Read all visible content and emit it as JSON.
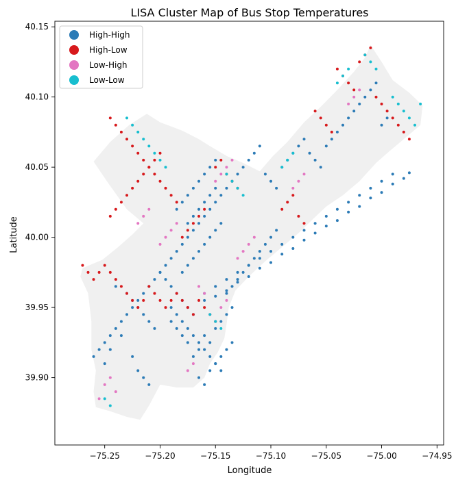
{
  "chart_data": {
    "type": "scatter",
    "title": "LISA Cluster Map of Bus Stop Temperatures",
    "xlabel": "Longitude",
    "ylabel": "Latitude",
    "xlim": [
      -75.295,
      -74.944
    ],
    "ylim": [
      39.852,
      40.154
    ],
    "x_ticks": [
      -75.25,
      -75.2,
      -75.15,
      -75.1,
      -75.05,
      -75.0,
      -74.95
    ],
    "x_tick_labels": [
      "−75.25",
      "−75.20",
      "−75.15",
      "−75.10",
      "−75.05",
      "−75.00",
      "−74.95"
    ],
    "y_ticks": [
      39.9,
      39.95,
      40.0,
      40.05,
      40.1,
      40.15
    ],
    "y_tick_labels": [
      "39.90",
      "39.95",
      "40.00",
      "40.05",
      "40.10",
      "40.15"
    ],
    "grid": false,
    "legend_position": "top-left",
    "basemap_color": "#f0f0f0",
    "boundary_outline": [
      [
        -75.27,
        39.978
      ],
      [
        -75.252,
        39.984
      ],
      [
        -75.238,
        39.993
      ],
      [
        -75.225,
        40.002
      ],
      [
        -75.215,
        40.01
      ],
      [
        -75.23,
        40.02
      ],
      [
        -75.248,
        40.04
      ],
      [
        -75.26,
        40.054
      ],
      [
        -75.245,
        40.068
      ],
      [
        -75.228,
        40.08
      ],
      [
        -75.212,
        40.088
      ],
      [
        -75.2,
        40.082
      ],
      [
        -75.18,
        40.076
      ],
      [
        -75.165,
        40.07
      ],
      [
        -75.155,
        40.065
      ],
      [
        -75.14,
        40.058
      ],
      [
        -75.125,
        40.053
      ],
      [
        -75.11,
        40.047
      ],
      [
        -75.098,
        40.058
      ],
      [
        -75.085,
        40.068
      ],
      [
        -75.07,
        40.082
      ],
      [
        -75.055,
        40.093
      ],
      [
        -75.04,
        40.105
      ],
      [
        -75.025,
        40.118
      ],
      [
        -75.015,
        40.128
      ],
      [
        -75.01,
        40.137
      ],
      [
        -75.0,
        40.125
      ],
      [
        -74.99,
        40.112
      ],
      [
        -74.975,
        40.103
      ],
      [
        -74.963,
        40.094
      ],
      [
        -74.965,
        40.08
      ],
      [
        -74.98,
        40.07
      ],
      [
        -74.995,
        40.06
      ],
      [
        -75.005,
        40.053
      ],
      [
        -75.02,
        40.04
      ],
      [
        -75.035,
        40.03
      ],
      [
        -75.05,
        40.022
      ],
      [
        -75.062,
        40.013
      ],
      [
        -75.075,
        40.003
      ],
      [
        -75.09,
        39.993
      ],
      [
        -75.105,
        39.983
      ],
      [
        -75.12,
        39.972
      ],
      [
        -75.132,
        39.962
      ],
      [
        -75.138,
        39.95
      ],
      [
        -75.14,
        39.938
      ],
      [
        -75.142,
        39.928
      ],
      [
        -75.148,
        39.918
      ],
      [
        -75.155,
        39.91
      ],
      [
        -75.16,
        39.9
      ],
      [
        -75.17,
        39.893
      ],
      [
        -75.185,
        39.893
      ],
      [
        -75.2,
        39.895
      ],
      [
        -75.21,
        39.88
      ],
      [
        -75.218,
        39.87
      ],
      [
        -75.23,
        39.872
      ],
      [
        -75.245,
        39.876
      ],
      [
        -75.258,
        39.879
      ],
      [
        -75.26,
        39.89
      ],
      [
        -75.258,
        39.905
      ],
      [
        -75.262,
        39.92
      ],
      [
        -75.262,
        39.94
      ],
      [
        -75.265,
        39.96
      ],
      [
        -75.272,
        39.972
      ]
    ],
    "series": [
      {
        "name": "High-High",
        "color": "#2c7bb6",
        "x": [
          -75.16,
          -75.155,
          -75.15,
          -75.145,
          -75.14,
          -75.135,
          -75.165,
          -75.17,
          -75.175,
          -75.18,
          -75.185,
          -75.19,
          -75.16,
          -75.15,
          -75.14,
          -75.13,
          -75.12,
          -75.11,
          -75.1,
          -75.09,
          -75.08,
          -75.07,
          -75.06,
          -75.05,
          -75.04,
          -75.03,
          -75.02,
          -75.01,
          -75.0,
          -74.99,
          -75.165,
          -75.16,
          -75.155,
          -75.15,
          -75.145,
          -75.17,
          -75.175,
          -75.18,
          -75.165,
          -75.16,
          -75.155,
          -75.15,
          -75.17,
          -75.175,
          -75.23,
          -75.225,
          -75.22,
          -75.215,
          -75.21,
          -75.205,
          -75.24,
          -75.235,
          -75.245,
          -75.25,
          -75.225,
          -75.22,
          -75.215,
          -75.21,
          -75.2,
          -75.195,
          -75.19,
          -75.185,
          -75.18,
          -75.175,
          -75.17,
          -75.165,
          -75.16,
          -75.155,
          -75.15,
          -75.145,
          -75.14,
          -75.135,
          -75.13,
          -75.125,
          -75.12,
          -75.115,
          -75.11,
          -75.105,
          -75.1,
          -75.095,
          -75.09,
          -75.085,
          -75.08,
          -75.075,
          -75.07,
          -75.065,
          -75.06,
          -75.055,
          -75.05,
          -75.045,
          -75.04,
          -75.035,
          -75.03,
          -75.025,
          -75.02,
          -75.015,
          -75.01,
          -75.005,
          -75.0,
          -74.995,
          -75.19,
          -75.185,
          -75.18,
          -75.175,
          -75.17,
          -75.165,
          -75.16,
          -75.155,
          -75.15,
          -75.145,
          -75.14,
          -75.135,
          -75.13,
          -75.125,
          -75.12,
          -75.115,
          -75.11,
          -75.105,
          -75.1,
          -75.095,
          -75.165,
          -75.16,
          -75.155,
          -75.15,
          -75.145,
          -75.14,
          -75.135,
          -75.17,
          -75.175,
          -75.18,
          -75.185,
          -75.19,
          -75.195,
          -75.2,
          -75.205,
          -75.21,
          -75.215,
          -75.22,
          -75.225,
          -75.23,
          -75.235,
          -75.24,
          -75.245,
          -75.25,
          -75.255,
          -75.26,
          -75.165,
          -75.16,
          -75.155,
          -75.15,
          -75.17,
          -75.175,
          -75.18,
          -75.185,
          -75.16,
          -75.15,
          -75.14,
          -75.13,
          -75.12,
          -75.11,
          -75.1,
          -75.09,
          -75.08,
          -75.07,
          -75.06,
          -75.05,
          -75.04,
          -75.03,
          -75.02,
          -75.01,
          -75.0,
          -74.99,
          -74.98,
          -74.975
        ],
        "y": [
          39.93,
          39.925,
          39.935,
          39.94,
          39.945,
          39.95,
          39.92,
          39.915,
          39.925,
          39.93,
          39.935,
          39.94,
          39.96,
          39.965,
          39.97,
          39.975,
          39.98,
          39.985,
          39.99,
          39.995,
          40.0,
          40.005,
          40.01,
          40.015,
          40.02,
          40.025,
          40.03,
          40.035,
          40.04,
          40.045,
          39.99,
          39.995,
          40.0,
          40.005,
          40.01,
          39.985,
          39.98,
          39.975,
          40.02,
          40.025,
          40.03,
          40.035,
          40.015,
          40.01,
          39.96,
          39.955,
          39.95,
          39.945,
          39.94,
          39.935,
          39.965,
          39.93,
          39.92,
          39.91,
          39.915,
          39.905,
          39.9,
          39.895,
          39.975,
          39.98,
          39.985,
          39.99,
          39.995,
          40.0,
          40.005,
          40.01,
          40.015,
          40.02,
          40.025,
          40.03,
          40.035,
          40.04,
          40.045,
          40.05,
          40.055,
          40.06,
          40.065,
          40.045,
          40.04,
          40.035,
          40.05,
          40.055,
          40.06,
          40.065,
          40.07,
          40.06,
          40.055,
          40.05,
          40.065,
          40.07,
          40.075,
          40.08,
          40.085,
          40.09,
          40.095,
          40.1,
          40.105,
          40.11,
          40.08,
          40.085,
          39.95,
          39.945,
          39.94,
          39.935,
          39.93,
          39.925,
          39.92,
          39.915,
          39.91,
          39.905,
          39.96,
          39.965,
          39.97,
          39.975,
          39.98,
          39.985,
          39.99,
          39.995,
          40.0,
          40.005,
          39.9,
          39.895,
          39.905,
          39.91,
          39.915,
          39.92,
          39.925,
          39.945,
          39.95,
          39.955,
          39.96,
          39.965,
          39.97,
          39.975,
          39.97,
          39.965,
          39.96,
          39.955,
          39.95,
          39.945,
          39.94,
          39.935,
          39.93,
          39.925,
          39.92,
          39.915,
          40.04,
          40.045,
          40.05,
          40.055,
          40.035,
          40.03,
          40.025,
          40.02,
          39.955,
          39.958,
          39.962,
          39.968,
          39.972,
          39.978,
          39.982,
          39.988,
          39.992,
          39.998,
          40.003,
          40.008,
          40.012,
          40.018,
          40.022,
          40.028,
          40.032,
          40.038,
          40.042,
          40.046
        ]
      },
      {
        "name": "High-Low",
        "color": "#d7191c",
        "x": [
          -75.175,
          -75.17,
          -75.165,
          -75.16,
          -75.155,
          -75.15,
          -75.18,
          -75.185,
          -75.19,
          -75.195,
          -75.2,
          -75.205,
          -75.21,
          -75.215,
          -75.22,
          -75.225,
          -75.23,
          -75.235,
          -75.24,
          -75.245,
          -75.25,
          -75.255,
          -75.26,
          -75.265,
          -75.27,
          -75.2,
          -75.205,
          -75.21,
          -75.215,
          -75.22,
          -75.225,
          -75.23,
          -75.235,
          -75.24,
          -75.245,
          -75.15,
          -75.145,
          -75.14,
          -75.135,
          -75.13,
          -75.09,
          -75.085,
          -75.08,
          -75.075,
          -75.07,
          -75.04,
          -75.035,
          -75.03,
          -75.025,
          -75.02,
          -75.015,
          -75.01,
          -75.005,
          -75.0,
          -74.995,
          -74.99,
          -74.985,
          -74.98,
          -74.975,
          -75.06,
          -75.055,
          -75.05,
          -75.045,
          -75.18,
          -75.175,
          -75.17,
          -75.165,
          -75.16,
          -75.185,
          -75.19,
          -75.195,
          -75.2,
          -75.205,
          -75.21,
          -75.215,
          -75.22,
          -75.225,
          -75.23,
          -75.235,
          -75.24,
          -75.245
        ],
        "y": [
          39.95,
          39.945,
          39.955,
          39.95,
          39.945,
          39.94,
          39.955,
          39.96,
          39.955,
          39.95,
          39.955,
          39.96,
          39.965,
          39.955,
          39.95,
          39.955,
          39.96,
          39.965,
          39.97,
          39.975,
          39.98,
          39.975,
          39.97,
          39.975,
          39.98,
          40.06,
          40.055,
          40.05,
          40.045,
          40.04,
          40.035,
          40.03,
          40.025,
          40.02,
          40.015,
          40.05,
          40.055,
          40.045,
          40.04,
          40.035,
          40.02,
          40.025,
          40.03,
          40.015,
          40.01,
          40.12,
          40.115,
          40.11,
          40.105,
          40.125,
          40.13,
          40.135,
          40.1,
          40.095,
          40.09,
          40.085,
          40.08,
          40.075,
          40.07,
          40.09,
          40.085,
          40.08,
          40.075,
          40.0,
          40.005,
          40.01,
          40.015,
          40.02,
          40.025,
          40.03,
          40.035,
          40.04,
          40.045,
          40.05,
          40.055,
          40.06,
          40.065,
          40.07,
          40.075,
          40.08,
          40.085
        ]
      },
      {
        "name": "Low-High",
        "color": "#e377c2",
        "x": [
          -75.155,
          -75.15,
          -75.145,
          -75.14,
          -75.16,
          -75.165,
          -75.17,
          -75.175,
          -75.25,
          -75.245,
          -75.24,
          -75.255,
          -75.22,
          -75.215,
          -75.21,
          -75.2,
          -75.195,
          -75.19,
          -75.185,
          -75.13,
          -75.125,
          -75.12,
          -75.115,
          -75.08,
          -75.075,
          -75.07,
          -75.03,
          -75.025,
          -75.02,
          -75.15,
          -75.145,
          -75.14,
          -75.135
        ],
        "y": [
          39.945,
          39.94,
          39.95,
          39.955,
          39.96,
          39.965,
          39.91,
          39.905,
          39.895,
          39.9,
          39.89,
          39.885,
          40.01,
          40.015,
          40.02,
          39.995,
          40.0,
          40.005,
          40.01,
          39.985,
          39.99,
          39.995,
          40.0,
          40.035,
          40.04,
          40.045,
          40.095,
          40.1,
          40.105,
          40.04,
          40.045,
          40.05,
          40.055
        ]
      },
      {
        "name": "Low-Low",
        "color": "#17becf",
        "x": [
          -75.23,
          -75.225,
          -75.22,
          -75.215,
          -75.21,
          -75.205,
          -75.2,
          -75.195,
          -75.14,
          -75.135,
          -75.13,
          -75.125,
          -75.09,
          -75.085,
          -75.08,
          -75.04,
          -75.035,
          -75.03,
          -74.99,
          -74.985,
          -74.98,
          -74.975,
          -74.97,
          -74.965,
          -75.155,
          -75.15,
          -75.145,
          -75.015,
          -75.01,
          -75.005,
          -75.25,
          -75.245
        ],
        "y": [
          40.085,
          40.08,
          40.075,
          40.07,
          40.065,
          40.06,
          40.055,
          40.05,
          40.045,
          40.04,
          40.035,
          40.03,
          40.05,
          40.055,
          40.06,
          40.11,
          40.115,
          40.12,
          40.1,
          40.095,
          40.09,
          40.085,
          40.08,
          40.095,
          39.945,
          39.94,
          39.935,
          40.13,
          40.125,
          40.12,
          39.885,
          39.88
        ]
      }
    ]
  }
}
